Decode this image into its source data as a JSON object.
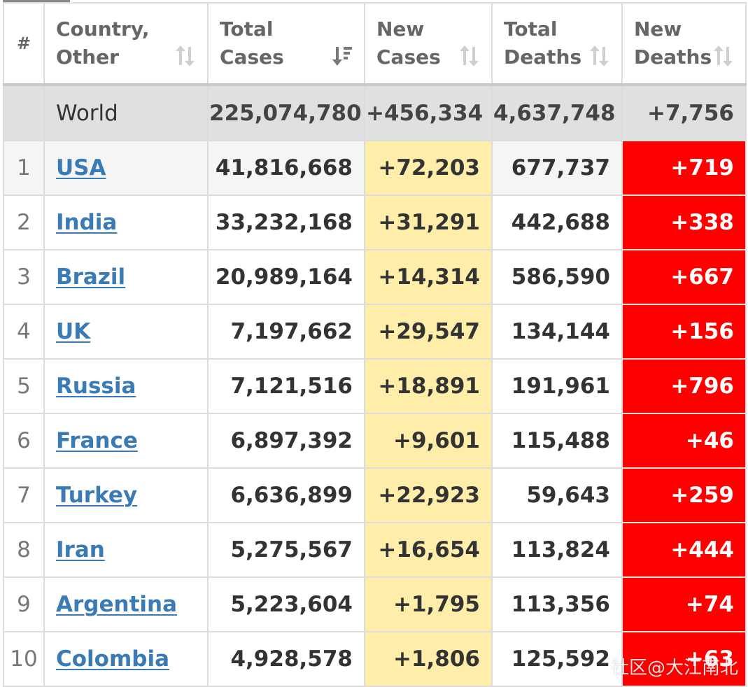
{
  "header": {
    "rank": "#",
    "country_line1": "Country,",
    "country_line2": "Other",
    "total_cases_line1": "Total",
    "total_cases_line2": "Cases",
    "new_cases_line1": "New",
    "new_cases_line2": "Cases",
    "total_deaths_line1": "Total",
    "total_deaths_line2": "Deaths",
    "new_deaths_line1": "New",
    "new_deaths_line2": "Deaths"
  },
  "world": {
    "name": "World",
    "total_cases": "225,074,780",
    "new_cases": "+456,334",
    "total_deaths": "4,637,748",
    "new_deaths": "+7,756"
  },
  "rows": [
    {
      "rank": "1",
      "country": "USA",
      "total_cases": "41,816,668",
      "new_cases": "+72,203",
      "total_deaths": "677,737",
      "new_deaths": "+719"
    },
    {
      "rank": "2",
      "country": "India",
      "total_cases": "33,232,168",
      "new_cases": "+31,291",
      "total_deaths": "442,688",
      "new_deaths": "+338"
    },
    {
      "rank": "3",
      "country": "Brazil",
      "total_cases": "20,989,164",
      "new_cases": "+14,314",
      "total_deaths": "586,590",
      "new_deaths": "+667"
    },
    {
      "rank": "4",
      "country": "UK",
      "total_cases": "7,197,662",
      "new_cases": "+29,547",
      "total_deaths": "134,144",
      "new_deaths": "+156"
    },
    {
      "rank": "5",
      "country": "Russia",
      "total_cases": "7,121,516",
      "new_cases": "+18,891",
      "total_deaths": "191,961",
      "new_deaths": "+796"
    },
    {
      "rank": "6",
      "country": "France",
      "total_cases": "6,897,392",
      "new_cases": "+9,601",
      "total_deaths": "115,488",
      "new_deaths": "+46"
    },
    {
      "rank": "7",
      "country": "Turkey",
      "total_cases": "6,636,899",
      "new_cases": "+22,923",
      "total_deaths": "59,643",
      "new_deaths": "+259"
    },
    {
      "rank": "8",
      "country": "Iran",
      "total_cases": "5,275,567",
      "new_cases": "+16,654",
      "total_deaths": "113,824",
      "new_deaths": "+444"
    },
    {
      "rank": "9",
      "country": "Argentina",
      "total_cases": "5,223,604",
      "new_cases": "+1,795",
      "total_deaths": "113,356",
      "new_deaths": "+74"
    },
    {
      "rank": "10",
      "country": "Colombia",
      "total_cases": "4,928,578",
      "new_cases": "+1,806",
      "total_deaths": "125,592",
      "new_deaths": "+63"
    }
  ],
  "icons": {
    "sort_neutral": "sort-updown-icon",
    "sort_active": "sort-descending-icon"
  },
  "colors": {
    "link": "#3a7ab5",
    "new_cases_bg": "#ffeeaa",
    "new_deaths_bg": "#ff0000",
    "world_row_bg": "#e0e0e0"
  },
  "watermark": "社区@大江南北"
}
